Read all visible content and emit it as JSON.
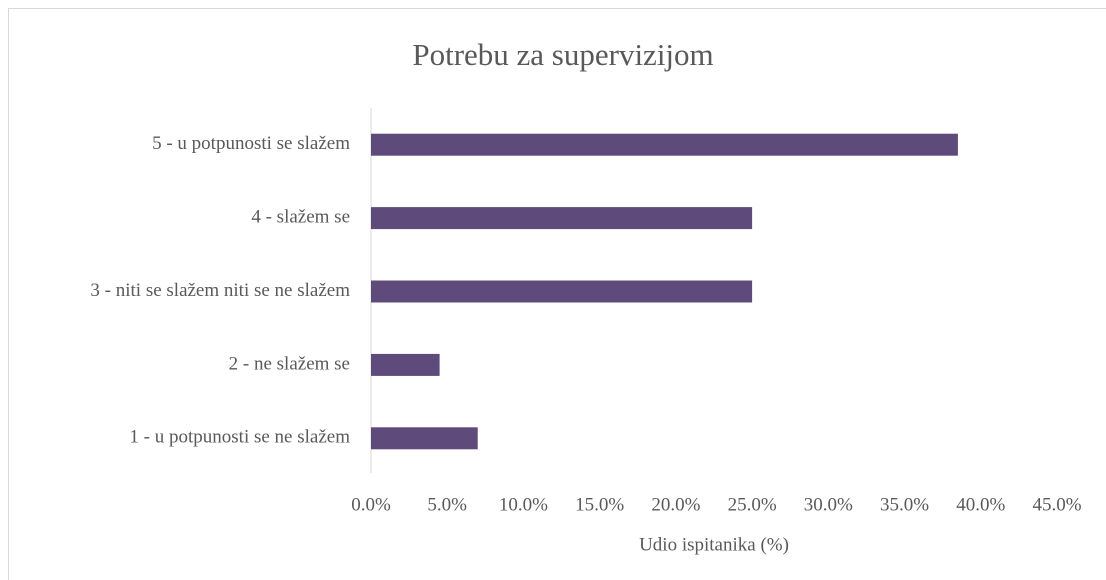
{
  "chart_data": {
    "type": "barh",
    "title": "Potrebu za supervizijom",
    "x_label": "Udio ispitanika (%)",
    "categories": [
      "1 - u potpunosti se ne slažem",
      "2 - ne slažem se",
      "3 - niti se slažem niti se ne slažem",
      "4 - slažem se",
      "5 - u potpunosti se slažem"
    ],
    "values": [
      7.0,
      4.5,
      25.0,
      25.0,
      38.5
    ],
    "color": "#5f4b7b",
    "xlim": [
      0,
      45
    ],
    "xticks": [
      {
        "value": 0,
        "label": "0.0%"
      },
      {
        "value": 5,
        "label": "5.0%"
      },
      {
        "value": 10,
        "label": "10.0%"
      },
      {
        "value": 15,
        "label": "15.0%"
      },
      {
        "value": 20,
        "label": "20.0%"
      },
      {
        "value": 25,
        "label": "25.0%"
      },
      {
        "value": 30,
        "label": "30.0%"
      },
      {
        "value": 35,
        "label": "35.0%"
      },
      {
        "value": 40,
        "label": "40.0%"
      },
      {
        "value": 45,
        "label": "45.0%"
      }
    ],
    "grid": false
  }
}
